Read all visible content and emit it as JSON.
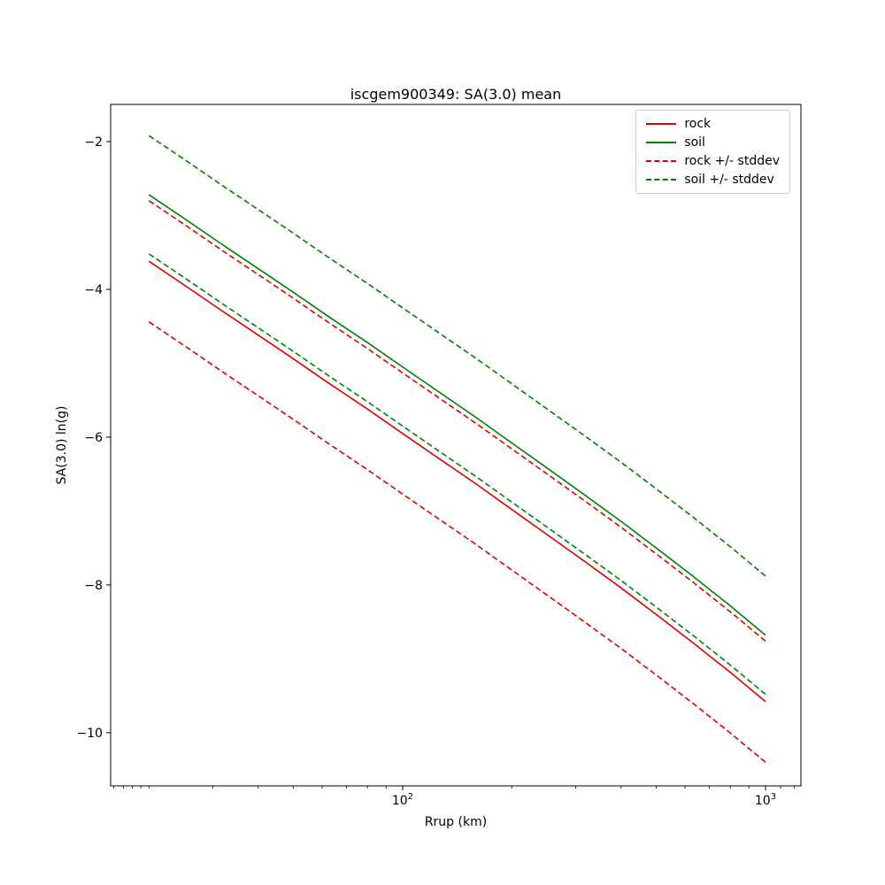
{
  "chart_data": {
    "type": "line",
    "title": "iscgem900349: SA(3.0) mean",
    "xlabel": "Rrup (km)",
    "ylabel": "SA(3.0) ln(g)",
    "x_scale": "log",
    "y_scale": "linear",
    "xlim": [
      15.68,
      1252
    ],
    "ylim": [
      -10.72,
      -1.497
    ],
    "grid": false,
    "legend_position": "upper right",
    "colors": {
      "rock": "#dd0000",
      "soil": "#008000",
      "frame": "#000000"
    },
    "x_major_ticks": [
      {
        "value": 100,
        "base": "10",
        "exp": "2"
      },
      {
        "value": 1000,
        "base": "10",
        "exp": "3"
      }
    ],
    "x_minor_ticks": [
      16,
      17,
      18,
      19,
      20,
      30,
      40,
      50,
      60,
      70,
      80,
      90,
      200,
      300,
      400,
      500,
      600,
      700,
      800,
      900,
      1100,
      1200
    ],
    "y_ticks": [
      {
        "value": -2,
        "label": "−2"
      },
      {
        "value": -4,
        "label": "−4"
      },
      {
        "value": -6,
        "label": "−6"
      },
      {
        "value": -8,
        "label": "−8"
      },
      {
        "value": -10,
        "label": "−10"
      }
    ],
    "x": [
      20,
      25,
      32,
      40,
      50,
      63,
      80,
      100,
      126,
      159,
      200,
      252,
      317,
      400,
      503,
      634,
      798,
      1000
    ],
    "rock_stddev": 0.82,
    "soil_stddev": 0.8,
    "series": [
      {
        "name": "rock - stddev",
        "color": "#dd0000",
        "style": "dashed",
        "values": [
          -4.44,
          -4.76,
          -5.12,
          -5.44,
          -5.76,
          -6.1,
          -6.44,
          -6.77,
          -7.11,
          -7.45,
          -7.8,
          -8.15,
          -8.5,
          -8.86,
          -9.23,
          -9.61,
          -10.0,
          -10.4
        ]
      },
      {
        "name": "rock + stddev",
        "color": "#dd0000",
        "style": "dashed",
        "values": [
          -2.8,
          -3.12,
          -3.48,
          -3.8,
          -4.12,
          -4.46,
          -4.8,
          -5.13,
          -5.47,
          -5.81,
          -6.16,
          -6.51,
          -6.86,
          -7.22,
          -7.59,
          -7.97,
          -8.36,
          -8.76
        ]
      },
      {
        "name": "soil - stddev",
        "color": "#008000",
        "style": "dashed",
        "values": [
          -3.52,
          -3.84,
          -4.2,
          -4.52,
          -4.84,
          -5.18,
          -5.52,
          -5.85,
          -6.19,
          -6.53,
          -6.88,
          -7.23,
          -7.58,
          -7.94,
          -8.31,
          -8.69,
          -9.08,
          -9.48
        ]
      },
      {
        "name": "soil + stddev",
        "color": "#008000",
        "style": "dashed",
        "values": [
          -1.92,
          -2.24,
          -2.6,
          -2.92,
          -3.24,
          -3.58,
          -3.92,
          -4.25,
          -4.59,
          -4.93,
          -5.28,
          -5.63,
          -5.98,
          -6.34,
          -6.71,
          -7.09,
          -7.48,
          -7.88
        ]
      },
      {
        "name": "rock",
        "color": "#dd0000",
        "style": "solid",
        "values": [
          -3.62,
          -3.94,
          -4.3,
          -4.62,
          -4.94,
          -5.28,
          -5.62,
          -5.95,
          -6.29,
          -6.63,
          -6.98,
          -7.33,
          -7.68,
          -8.04,
          -8.41,
          -8.79,
          -9.18,
          -9.58
        ]
      },
      {
        "name": "soil",
        "color": "#008000",
        "style": "solid",
        "values": [
          -2.72,
          -3.04,
          -3.4,
          -3.72,
          -4.04,
          -4.38,
          -4.72,
          -5.05,
          -5.39,
          -5.73,
          -6.08,
          -6.43,
          -6.78,
          -7.14,
          -7.51,
          -7.89,
          -8.28,
          -8.68
        ]
      }
    ],
    "legend": [
      {
        "label": "rock",
        "color": "#dd0000",
        "style": "solid"
      },
      {
        "label": "soil",
        "color": "#008000",
        "style": "solid"
      },
      {
        "label": "rock +/- stddev",
        "color": "#dd0000",
        "style": "dashed"
      },
      {
        "label": "soil +/- stddev",
        "color": "#008000",
        "style": "dashed"
      }
    ]
  }
}
